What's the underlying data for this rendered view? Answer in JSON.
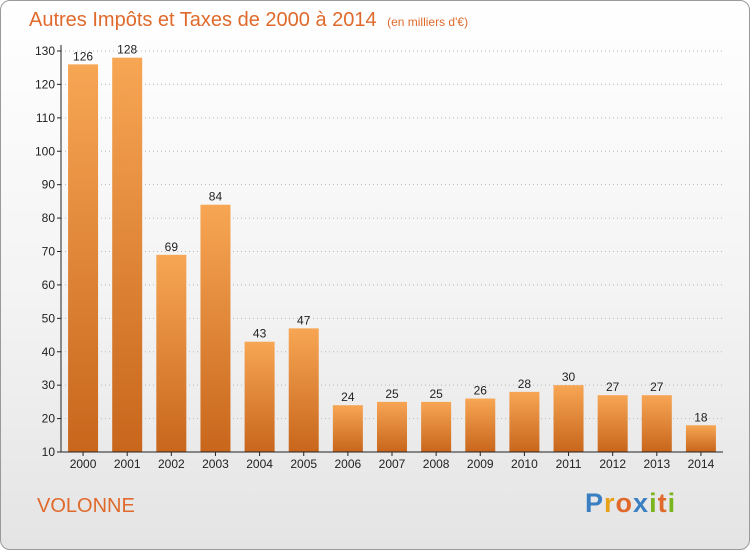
{
  "title": "Autres Impôts et Taxes de 2000 à 2014",
  "unit_note": "(en milliers d'€)",
  "commune": "VOLONNE",
  "logo": {
    "text": "Proxiti",
    "letters": [
      {
        "ch": "P",
        "color": "#3a7fc1"
      },
      {
        "ch": "r",
        "color": "#e8a21a"
      },
      {
        "ch": "o",
        "color": "#e06a2b"
      },
      {
        "ch": "x",
        "color": "#3a7fc1"
      },
      {
        "ch": "i",
        "color": "#7ab51d"
      },
      {
        "ch": "t",
        "color": "#e06a2b"
      },
      {
        "ch": "i",
        "color": "#7ab51d"
      }
    ]
  },
  "colors": {
    "bar_light": "#f7a654",
    "bar_dark": "#c8661c",
    "title": "#e06a2b",
    "grid": "#b8b8b8",
    "axis": "#222222"
  },
  "chart_data": {
    "type": "bar",
    "title": "Autres Impôts et Taxes de 2000 à 2014",
    "categories": [
      "2000",
      "2001",
      "2002",
      "2003",
      "2004",
      "2005",
      "2006",
      "2007",
      "2008",
      "2009",
      "2010",
      "2011",
      "2012",
      "2013",
      "2014"
    ],
    "values": [
      126,
      128,
      69,
      84,
      43,
      47,
      24,
      25,
      25,
      26,
      28,
      30,
      27,
      27,
      18
    ],
    "ylim": [
      10,
      130
    ],
    "yticks": [
      10,
      20,
      30,
      40,
      50,
      60,
      70,
      80,
      90,
      100,
      110,
      120,
      130
    ],
    "grid": true,
    "xlabel": "",
    "ylabel": ""
  }
}
